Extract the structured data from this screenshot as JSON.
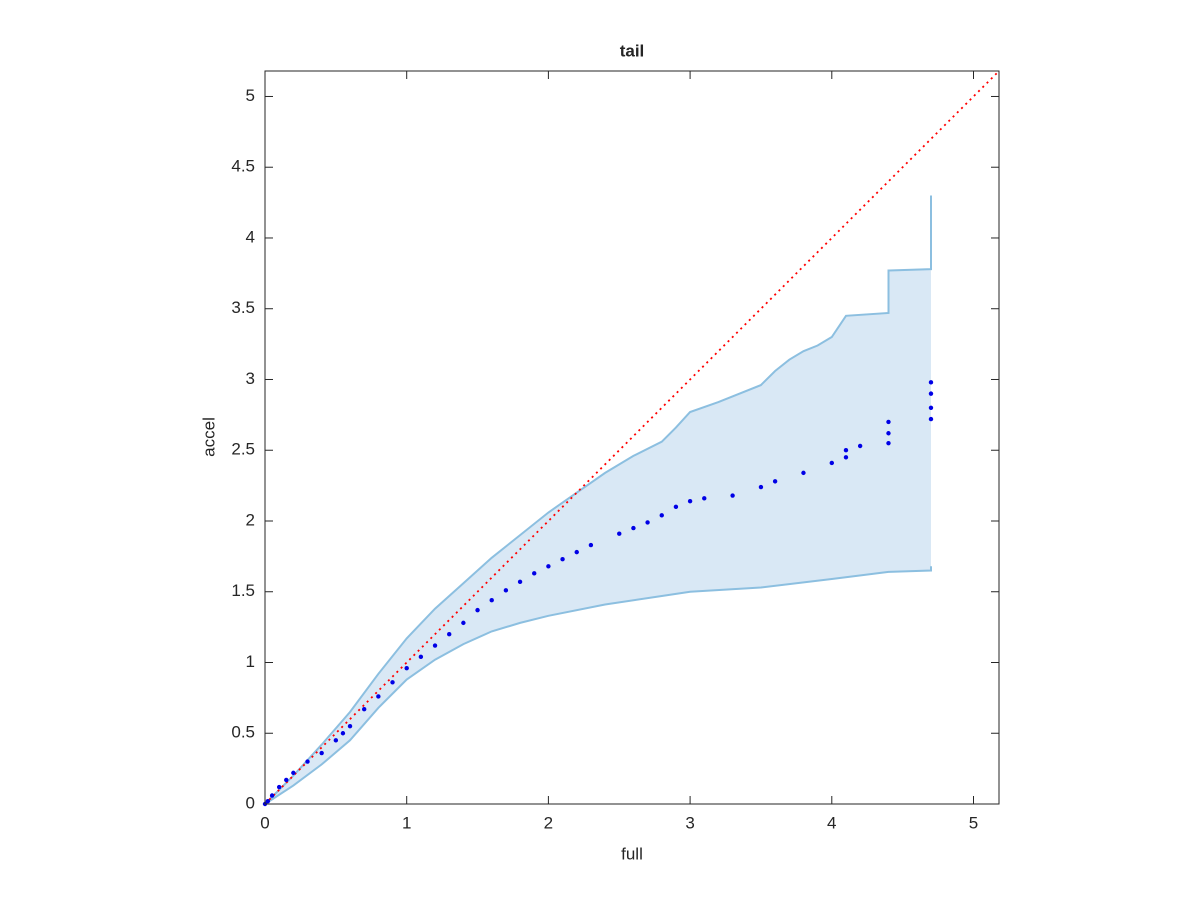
{
  "chart_data": {
    "type": "scatter",
    "title": "tail",
    "x_label": "full",
    "y_label": "accel",
    "xlim": [
      0,
      5.18
    ],
    "ylim": [
      0,
      5.18
    ],
    "xticks": [
      0,
      1,
      2,
      3,
      4,
      5
    ],
    "yticks": [
      0,
      0.5,
      1,
      1.5,
      2,
      2.5,
      3,
      3.5,
      4,
      4.5,
      5
    ],
    "color": "#0000e6",
    "x": [
      0,
      0.02,
      0.05,
      0.1,
      0.15,
      0.2,
      0.3,
      0.4,
      0.5,
      0.55,
      0.6,
      0.7,
      0.8,
      0.9,
      1.0,
      1.1,
      1.2,
      1.3,
      1.4,
      1.5,
      1.6,
      1.7,
      1.8,
      1.9,
      2.0,
      2.1,
      2.2,
      2.3,
      2.5,
      2.6,
      2.7,
      2.8,
      2.9,
      3.0,
      3.1,
      3.3,
      3.5,
      3.6,
      3.8,
      4.0,
      4.1,
      4.1,
      4.2,
      4.4,
      4.4,
      4.4,
      4.7,
      4.7,
      4.7,
      4.7
    ],
    "values": [
      0,
      0.02,
      0.06,
      0.12,
      0.17,
      0.22,
      0.3,
      0.36,
      0.45,
      0.5,
      0.55,
      0.67,
      0.76,
      0.86,
      0.96,
      1.04,
      1.12,
      1.2,
      1.28,
      1.37,
      1.44,
      1.51,
      1.57,
      1.63,
      1.68,
      1.73,
      1.78,
      1.83,
      1.91,
      1.95,
      1.99,
      2.04,
      2.1,
      2.14,
      2.16,
      2.18,
      2.24,
      2.28,
      2.34,
      2.41,
      2.45,
      2.5,
      2.53,
      2.55,
      2.62,
      2.7,
      2.72,
      2.8,
      2.9,
      2.98
    ],
    "band": {
      "fill": "#d9e8f5",
      "line_color": "#8cbfe0",
      "upper": {
        "x": [
          0,
          0.2,
          0.4,
          0.6,
          0.8,
          1.0,
          1.2,
          1.4,
          1.6,
          1.8,
          2.0,
          2.2,
          2.4,
          2.6,
          2.8,
          2.9,
          3.0,
          3.2,
          3.5,
          3.6,
          3.7,
          3.8,
          3.9,
          4.0,
          4.1,
          4.4,
          4.4,
          4.7,
          4.7
        ],
        "y": [
          0,
          0.2,
          0.42,
          0.65,
          0.92,
          1.17,
          1.38,
          1.56,
          1.74,
          1.9,
          2.06,
          2.2,
          2.34,
          2.46,
          2.56,
          2.66,
          2.77,
          2.84,
          2.96,
          3.06,
          3.14,
          3.2,
          3.24,
          3.3,
          3.45,
          3.47,
          3.77,
          3.78,
          4.3
        ]
      },
      "lower": {
        "x": [
          0,
          0.2,
          0.4,
          0.6,
          0.8,
          1.0,
          1.2,
          1.4,
          1.6,
          1.8,
          2.0,
          2.4,
          2.8,
          3.0,
          3.5,
          4.0,
          4.4,
          4.7,
          4.7
        ],
        "y": [
          0,
          0.13,
          0.28,
          0.45,
          0.68,
          0.88,
          1.02,
          1.13,
          1.22,
          1.28,
          1.33,
          1.41,
          1.47,
          1.5,
          1.53,
          1.59,
          1.64,
          1.65,
          1.68
        ]
      }
    },
    "reference_line": {
      "color": "#ff0000",
      "x": [
        0,
        5.18
      ],
      "y": [
        0,
        5.18
      ]
    }
  }
}
